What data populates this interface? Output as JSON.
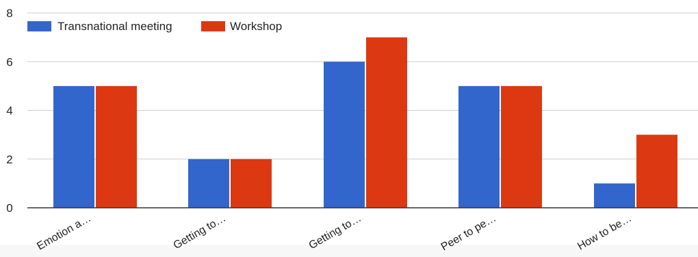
{
  "chart_data": {
    "type": "bar",
    "categories": [
      "Emotion a…",
      "Getting to…",
      "Getting to…",
      "Peer to pe…",
      "How to be…"
    ],
    "series": [
      {
        "name": "Transnational meeting",
        "values": [
          5,
          2,
          6,
          5,
          1
        ],
        "color": "#3366cc"
      },
      {
        "name": "Workshop",
        "values": [
          5,
          2,
          7,
          5,
          3
        ],
        "color": "#dc3912"
      }
    ],
    "yticks": [
      0,
      2,
      4,
      6,
      8
    ],
    "ylim": [
      0,
      8
    ],
    "grid": true,
    "legend": "top-left"
  }
}
